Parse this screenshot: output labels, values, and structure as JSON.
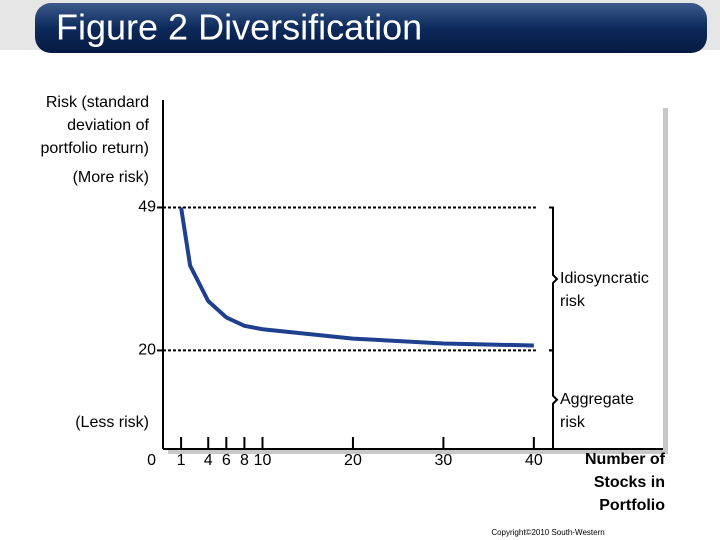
{
  "title": "Figure 2 Diversification",
  "chart_data": {
    "type": "line",
    "y_label": [
      "Risk (standard",
      "deviation of",
      "portfolio return)"
    ],
    "top_note": "(More risk)",
    "bottom_note": "(Less risk)",
    "x_label": [
      "Number of",
      "Stocks in",
      "Portfolio"
    ],
    "x": [
      1,
      2,
      4,
      6,
      8,
      10,
      20,
      30,
      40
    ],
    "values": [
      49,
      37.2,
      30,
      26.7,
      25,
      24.3,
      22.4,
      21.4,
      21
    ],
    "color": "#1f3f8f",
    "xlim": [
      -1,
      43
    ],
    "xticks": [
      1,
      4,
      6,
      8,
      10,
      20,
      30,
      40
    ],
    "ylim": [
      0,
      70
    ],
    "yticks": [
      0,
      20,
      49
    ],
    "annotations": [
      [
        "Idiosyncratic",
        "risk"
      ],
      [
        "Aggregate",
        "risk"
      ]
    ]
  },
  "footer": "Copyright©2010 South-Western"
}
